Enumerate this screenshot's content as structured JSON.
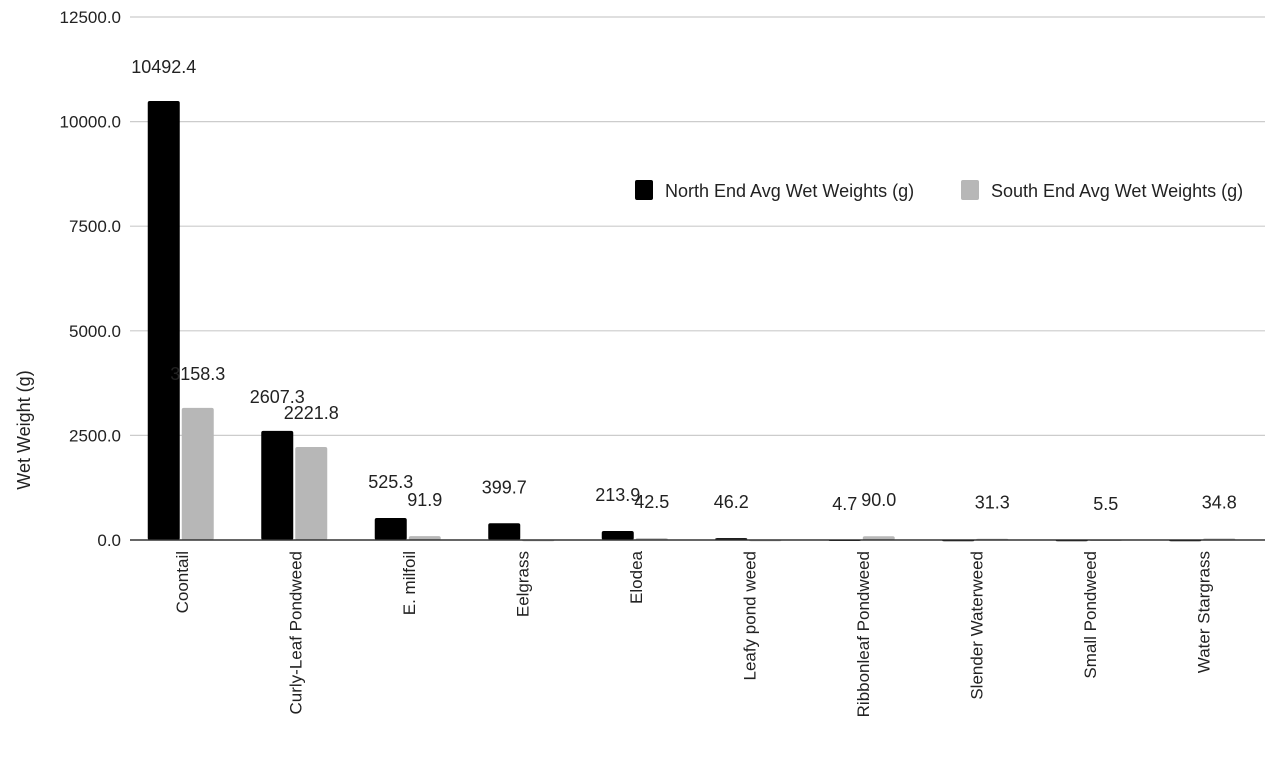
{
  "chart_data": {
    "type": "bar",
    "title": "",
    "xlabel": "",
    "ylabel": "Wet Weight (g)",
    "ylim": [
      0,
      12500
    ],
    "yticks": [
      "0.0",
      "2500.0",
      "5000.0",
      "7500.0",
      "10000.0",
      "12500.0"
    ],
    "grid": true,
    "legend_position": "right",
    "categories": [
      "Coontail",
      "Curly-Leaf Pondweed",
      "E. milfoil",
      "Eelgrass",
      "Elodea",
      "Leafy pond weed",
      "Ribbonleaf Pondweed",
      "Slender Waterweed",
      "Small Pondweed",
      "Water Stargrass"
    ],
    "series": [
      {
        "name": "North End Avg Wet Weights (g)",
        "color": "#000000",
        "values": [
          10492.4,
          2607.3,
          525.3,
          399.7,
          213.9,
          46.2,
          4.7,
          0,
          0,
          0
        ],
        "labels": [
          "10492.4",
          "2607.3",
          "525.3",
          "399.7",
          "213.9",
          "46.2",
          "4.7",
          "",
          "",
          ""
        ]
      },
      {
        "name": "South End Avg Wet Weights (g)",
        "color": "#b7b7b7",
        "values": [
          3158.3,
          2221.8,
          91.9,
          0,
          42.5,
          0,
          90.0,
          31.3,
          5.5,
          34.8
        ],
        "labels": [
          "3158.3",
          "2221.8",
          "91.9",
          "",
          "42.5",
          "",
          "90.0",
          "31.3",
          "5.5",
          "34.8"
        ]
      }
    ]
  }
}
